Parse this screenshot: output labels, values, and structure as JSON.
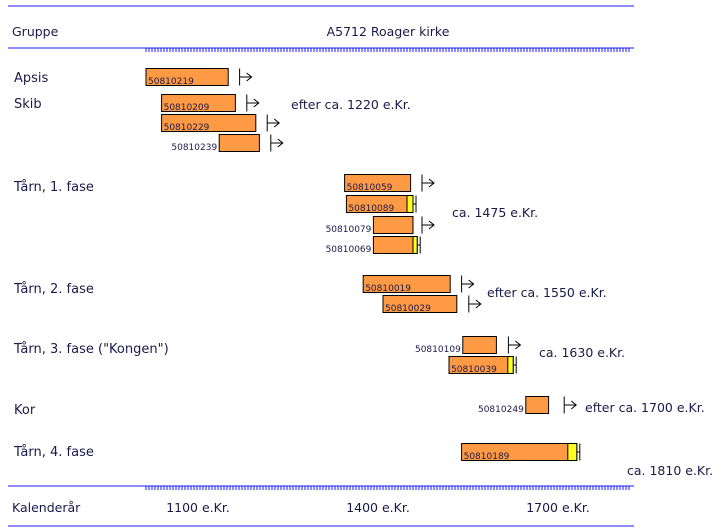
{
  "chart_data": {
    "type": "bar",
    "title": "A5712 Roager kirke",
    "header_left": "Gruppe",
    "footer_left": "Kalenderår",
    "x_tick_labels": [
      {
        "year": 1100,
        "label": "1100 e.Kr."
      },
      {
        "year": 1400,
        "label": "1400 e.Kr."
      },
      {
        "year": 1700,
        "label": "1700 e.Kr."
      }
    ],
    "xlim": [
      1100,
      1850
    ],
    "colors": {
      "heartwood": "#ff9a44",
      "sapwood": "#ffff22",
      "rule": "#1a1aff",
      "text": "#1a1a4a"
    },
    "groups": [
      {
        "name": "Apsis",
        "date_label": "",
        "samples": [
          {
            "id": "50810219",
            "start": 1100,
            "end": 1237,
            "sapwood_start": null,
            "bark": false,
            "felling_from": 1256
          }
        ]
      },
      {
        "name": "Skib",
        "date_label": "efter ca. 1220 e.Kr.",
        "samples": [
          {
            "id": "50810209",
            "start": 1126,
            "end": 1249,
            "sapwood_start": null,
            "bark": false,
            "felling_from": 1268
          },
          {
            "id": "50810229",
            "start": 1126,
            "end": 1283,
            "sapwood_start": null,
            "bark": false,
            "felling_from": 1302
          },
          {
            "id": "50810239",
            "start": 1222,
            "end": 1289,
            "sapwood_start": null,
            "bark": false,
            "felling_from": 1308
          }
        ]
      },
      {
        "name": "Tårn, 1. fase",
        "date_label": "ca. 1475 e.Kr.",
        "samples": [
          {
            "id": "50810059",
            "start": 1431,
            "end": 1541,
            "sapwood_start": null,
            "bark": false,
            "felling_from": 1560
          },
          {
            "id": "50810089",
            "start": 1434,
            "end": 1545,
            "sapwood_start": 1535,
            "bark": true,
            "felling_from": null
          },
          {
            "id": "50810079",
            "start": 1479,
            "end": 1545,
            "sapwood_start": null,
            "bark": false,
            "felling_from": 1560
          },
          {
            "id": "50810069",
            "start": 1479,
            "end": 1552,
            "sapwood_start": 1545,
            "bark": true,
            "felling_from": null
          }
        ]
      },
      {
        "name": "Tårn, 2. fase",
        "date_label": "efter ca. 1550 e.Kr.",
        "samples": [
          {
            "id": "50810019",
            "start": 1462,
            "end": 1607,
            "sapwood_start": null,
            "bark": false,
            "felling_from": 1626
          },
          {
            "id": "50810029",
            "start": 1495,
            "end": 1618,
            "sapwood_start": null,
            "bark": false,
            "felling_from": 1638
          }
        ]
      },
      {
        "name": "Tårn, 3. fase (\"Kongen\")",
        "date_label": "ca. 1630 e.Kr.",
        "samples": [
          {
            "id": "50810109",
            "start": 1628,
            "end": 1684,
            "sapwood_start": null,
            "bark": false,
            "felling_from": 1704
          },
          {
            "id": "50810039",
            "start": 1605,
            "end": 1712,
            "sapwood_start": 1703,
            "bark": true,
            "felling_from": null
          }
        ]
      },
      {
        "name": "Kor",
        "date_label": "efter ca. 1700 e.Kr.",
        "samples": [
          {
            "id": "50810249",
            "start": 1733,
            "end": 1771,
            "sapwood_start": null,
            "bark": false,
            "felling_from": 1797
          }
        ]
      },
      {
        "name": "Tårn, 4. fase",
        "date_label": "ca. 1810 e.Kr.",
        "samples": [
          {
            "id": "50810189",
            "start": 1626,
            "end": 1818,
            "sapwood_start": 1803,
            "bark": true,
            "felling_from": null
          }
        ]
      }
    ]
  }
}
